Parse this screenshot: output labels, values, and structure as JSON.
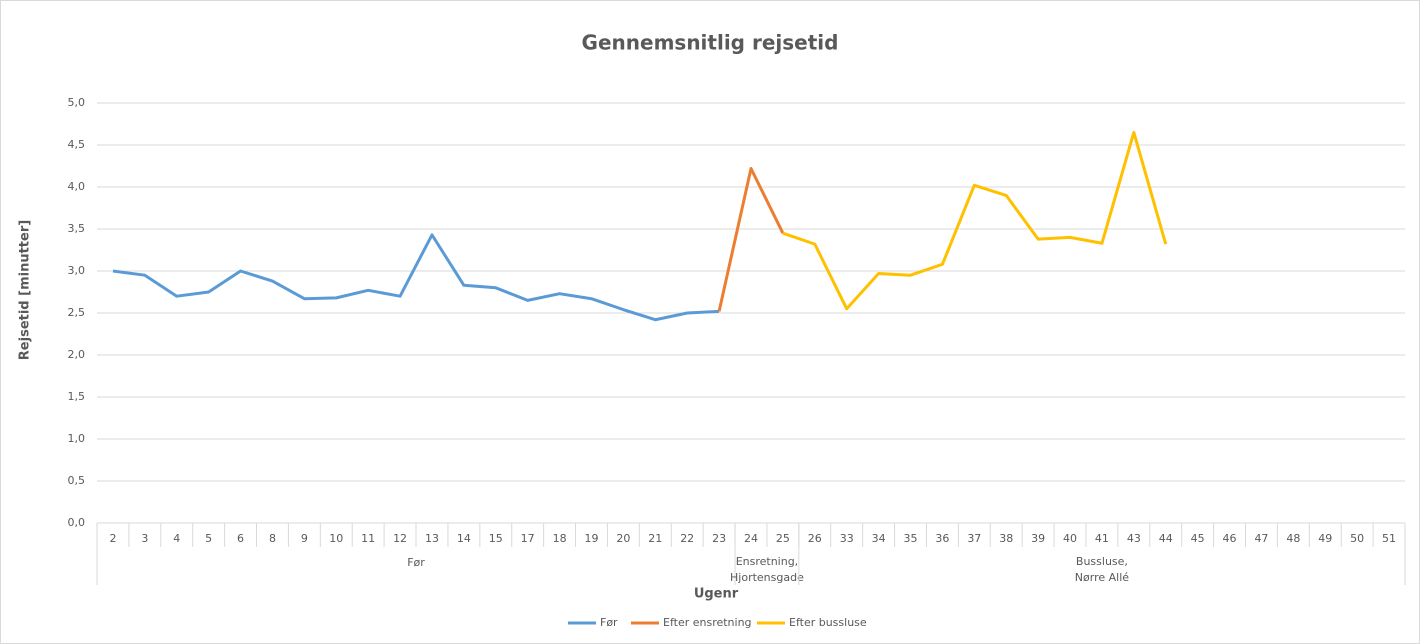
{
  "chart_data": {
    "type": "line",
    "title": "Gennemsnitlig rejsetid",
    "x_label": "Ugenr",
    "y_label": "Rejsetid [minutter]",
    "categories": [
      "2",
      "3",
      "4",
      "5",
      "6",
      "8",
      "9",
      "10",
      "11",
      "12",
      "13",
      "14",
      "15",
      "17",
      "18",
      "19",
      "20",
      "21",
      "22",
      "23",
      "24",
      "25",
      "26",
      "33",
      "34",
      "35",
      "36",
      "37",
      "38",
      "39",
      "40",
      "41",
      "43",
      "44",
      "45",
      "46",
      "47",
      "48",
      "49",
      "50",
      "51"
    ],
    "category_groups": [
      {
        "lines": [
          "Før"
        ],
        "span": 20
      },
      {
        "lines": [
          "Ensretning,",
          "Hjortensgade"
        ],
        "span": 2
      },
      {
        "lines": [
          "Bussluse,",
          "Nørre Allé"
        ],
        "span": 19
      }
    ],
    "series": [
      {
        "name": "Før",
        "color": "#5b9bd5",
        "values": [
          3.0,
          2.95,
          2.7,
          2.75,
          3.0,
          2.88,
          2.67,
          2.68,
          2.77,
          2.7,
          3.43,
          2.83,
          2.8,
          2.65,
          2.73,
          2.67,
          2.54,
          2.42,
          2.5,
          2.52,
          null,
          null,
          null,
          null,
          null,
          null,
          null,
          null,
          null,
          null,
          null,
          null,
          null,
          null,
          null,
          null,
          null,
          null,
          null,
          null,
          null
        ]
      },
      {
        "name": "Efter ensretning",
        "color": "#ed7d31",
        "values": [
          null,
          null,
          null,
          null,
          null,
          null,
          null,
          null,
          null,
          null,
          null,
          null,
          null,
          null,
          null,
          null,
          null,
          null,
          null,
          2.52,
          4.22,
          3.45,
          null,
          null,
          null,
          null,
          null,
          null,
          null,
          null,
          null,
          null,
          null,
          null,
          null,
          null,
          null,
          null,
          null,
          null,
          null
        ]
      },
      {
        "name": "Efter bussluse",
        "color": "#ffc000",
        "values": [
          null,
          null,
          null,
          null,
          null,
          null,
          null,
          null,
          null,
          null,
          null,
          null,
          null,
          null,
          null,
          null,
          null,
          null,
          null,
          null,
          null,
          3.45,
          3.32,
          2.55,
          2.97,
          2.95,
          3.08,
          4.02,
          3.9,
          3.38,
          3.4,
          3.33,
          4.65,
          3.32,
          null,
          null,
          null,
          null,
          null,
          null,
          null
        ]
      }
    ],
    "ylim": [
      0,
      5
    ],
    "yticks": [
      {
        "value": 0,
        "label": "0,0"
      },
      {
        "value": 0.5,
        "label": "0,5"
      },
      {
        "value": 1,
        "label": "1,0"
      },
      {
        "value": 1.5,
        "label": "1,5"
      },
      {
        "value": 2,
        "label": "2,0"
      },
      {
        "value": 2.5,
        "label": "2,5"
      },
      {
        "value": 3,
        "label": "3,0"
      },
      {
        "value": 3.5,
        "label": "3,5"
      },
      {
        "value": 4,
        "label": "4,0"
      },
      {
        "value": 4.5,
        "label": "4,5"
      },
      {
        "value": 5,
        "label": "5,0"
      }
    ],
    "grid": true,
    "legend": "bottom"
  }
}
